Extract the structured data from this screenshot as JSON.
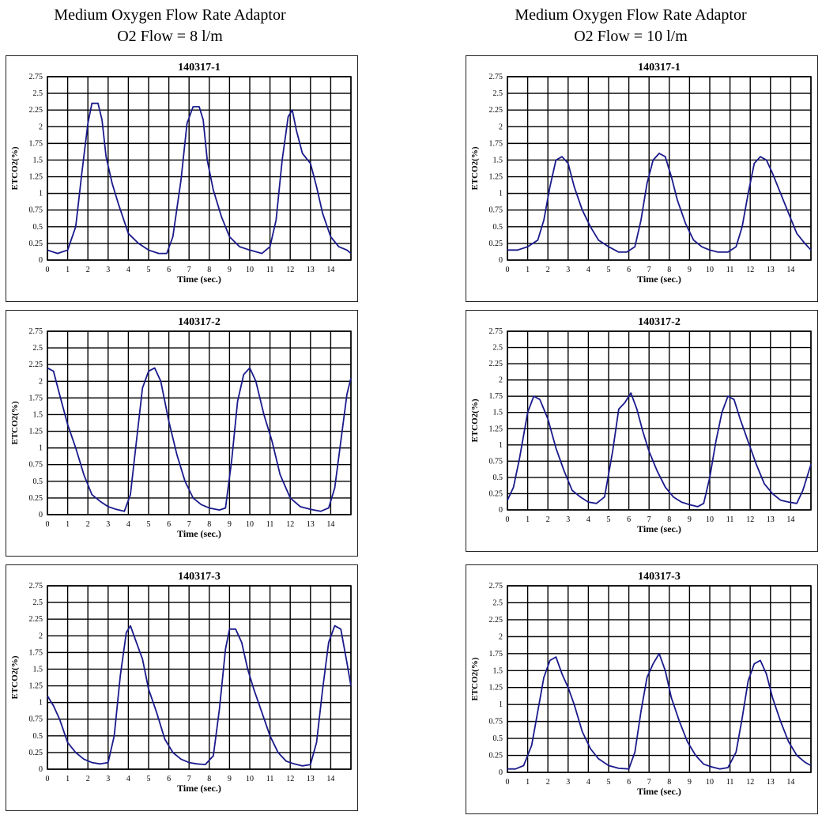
{
  "columns": [
    {
      "title_line1": "Medium Oxygen Flow Rate Adaptor",
      "title_line2": "O2 Flow = 8 l/m"
    },
    {
      "title_line1": "Medium Oxygen Flow Rate Adaptor",
      "title_line2": "O2 Flow = 10 l/m"
    }
  ],
  "colors": {
    "trace": "#1a1a8c",
    "grid": "#000000"
  },
  "chart_data": [
    {
      "type": "line",
      "title": "140317-1",
      "column": "left",
      "xlabel": "Time (sec.)",
      "ylabel": "ETCO2(%)",
      "xlim": [
        0,
        15
      ],
      "ylim": [
        0,
        2.75
      ],
      "xticks": [
        "0",
        "1",
        "2",
        "3",
        "4",
        "5",
        "6",
        "7",
        "8",
        "9",
        "10",
        "11",
        "12",
        "13",
        "14"
      ],
      "yticks": [
        "0",
        "0.25",
        "0.5",
        "0.75",
        "1",
        "1.25",
        "1.5",
        "1.75",
        "2",
        "2.25",
        "2.5",
        "2.75"
      ],
      "series": [
        {
          "x": [
            0,
            0.5,
            1,
            1.4,
            1.7,
            2,
            2.2,
            2.5,
            2.7,
            2.9,
            3.2,
            3.5,
            4,
            4.5,
            5,
            5.5,
            5.9,
            6.2,
            6.6,
            6.9,
            7.2,
            7.5,
            7.7,
            7.9,
            8.2,
            8.6,
            9,
            9.5,
            10,
            10.6,
            11,
            11.3,
            11.6,
            11.9,
            12.1,
            12.3,
            12.6,
            13,
            13.3,
            13.6,
            14,
            14.4,
            14.8,
            15
          ],
          "y": [
            0.15,
            0.1,
            0.15,
            0.5,
            1.3,
            2.05,
            2.35,
            2.35,
            2.1,
            1.55,
            1.15,
            0.85,
            0.4,
            0.25,
            0.15,
            0.1,
            0.1,
            0.35,
            1.2,
            2.05,
            2.3,
            2.3,
            2.1,
            1.5,
            1.05,
            0.65,
            0.35,
            0.2,
            0.15,
            0.1,
            0.2,
            0.6,
            1.5,
            2.15,
            2.25,
            1.95,
            1.6,
            1.45,
            1.1,
            0.7,
            0.35,
            0.2,
            0.15,
            0.1
          ]
        }
      ]
    },
    {
      "type": "line",
      "title": "140317-1",
      "column": "right",
      "xlabel": "Time (sec.)",
      "ylabel": "ETCO2(%)",
      "xlim": [
        0,
        15
      ],
      "ylim": [
        0,
        2.75
      ],
      "xticks": [
        "0",
        "1",
        "2",
        "3",
        "4",
        "5",
        "6",
        "7",
        "8",
        "9",
        "10",
        "11",
        "12",
        "13",
        "14"
      ],
      "yticks": [
        "0",
        "0.25",
        "0.5",
        "0.75",
        "1",
        "1.25",
        "1.5",
        "1.75",
        "2",
        "2.25",
        "2.5",
        "2.75"
      ],
      "series": [
        {
          "x": [
            0,
            0.5,
            1,
            1.5,
            1.8,
            2.1,
            2.4,
            2.7,
            3,
            3.3,
            3.7,
            4.1,
            4.5,
            5,
            5.5,
            5.9,
            6.3,
            6.6,
            6.9,
            7.2,
            7.5,
            7.8,
            8.1,
            8.4,
            8.8,
            9.2,
            9.6,
            10,
            10.4,
            10.9,
            11.3,
            11.6,
            11.9,
            12.2,
            12.5,
            12.8,
            13.1,
            13.5,
            13.9,
            14.3,
            14.7,
            15
          ],
          "y": [
            0.15,
            0.15,
            0.2,
            0.3,
            0.6,
            1.1,
            1.5,
            1.55,
            1.45,
            1.1,
            0.75,
            0.5,
            0.3,
            0.2,
            0.12,
            0.12,
            0.2,
            0.6,
            1.15,
            1.5,
            1.6,
            1.55,
            1.25,
            0.9,
            0.55,
            0.3,
            0.2,
            0.15,
            0.12,
            0.12,
            0.2,
            0.5,
            1.0,
            1.45,
            1.55,
            1.5,
            1.3,
            1.0,
            0.7,
            0.4,
            0.25,
            0.15
          ]
        }
      ]
    },
    {
      "type": "line",
      "title": "140317-2",
      "column": "left",
      "xlabel": "Time (sec.)",
      "ylabel": "ETCO2(%)",
      "xlim": [
        0,
        15
      ],
      "ylim": [
        0,
        2.75
      ],
      "xticks": [
        "0",
        "1",
        "2",
        "3",
        "4",
        "5",
        "6",
        "7",
        "8",
        "9",
        "10",
        "11",
        "12",
        "13",
        "14"
      ],
      "yticks": [
        "0",
        "0.25",
        "0.5",
        "0.75",
        "1",
        "1.25",
        "1.5",
        "1.75",
        "2",
        "2.25",
        "2.5",
        "2.75"
      ],
      "series": [
        {
          "x": [
            0,
            0.3,
            0.6,
            1,
            1.4,
            1.8,
            2.2,
            2.6,
            3,
            3.4,
            3.8,
            4.1,
            4.4,
            4.7,
            5,
            5.3,
            5.6,
            6,
            6.4,
            6.8,
            7.2,
            7.6,
            8,
            8.5,
            8.8,
            9.1,
            9.4,
            9.7,
            10,
            10.3,
            10.7,
            11.1,
            11.5,
            12,
            12.5,
            13,
            13.5,
            13.9,
            14.2,
            14.5,
            14.8,
            15
          ],
          "y": [
            2.2,
            2.15,
            1.8,
            1.35,
            1.0,
            0.6,
            0.3,
            0.2,
            0.12,
            0.08,
            0.05,
            0.3,
            1.1,
            1.9,
            2.15,
            2.2,
            2.0,
            1.4,
            0.9,
            0.5,
            0.25,
            0.15,
            0.1,
            0.07,
            0.1,
            0.8,
            1.7,
            2.1,
            2.2,
            2.0,
            1.5,
            1.1,
            0.6,
            0.25,
            0.12,
            0.08,
            0.05,
            0.1,
            0.4,
            1.1,
            1.8,
            2.05
          ]
        }
      ]
    },
    {
      "type": "line",
      "title": "140317-2",
      "column": "right",
      "xlabel": "Time (sec.)",
      "ylabel": "ETCO2(%)",
      "xlim": [
        0,
        15
      ],
      "ylim": [
        0,
        2.75
      ],
      "xticks": [
        "0",
        "1",
        "2",
        "3",
        "4",
        "5",
        "6",
        "7",
        "8",
        "9",
        "10",
        "11",
        "12",
        "13",
        "14"
      ],
      "yticks": [
        "0",
        "0.25",
        "0.5",
        "0.75",
        "1",
        "1.25",
        "1.5",
        "1.75",
        "2",
        "2.25",
        "2.5",
        "2.75"
      ],
      "series": [
        {
          "x": [
            0,
            0.3,
            0.6,
            1,
            1.3,
            1.6,
            2,
            2.4,
            2.8,
            3.2,
            3.6,
            4,
            4.4,
            4.8,
            5.2,
            5.5,
            5.8,
            6.1,
            6.4,
            6.7,
            7,
            7.4,
            7.8,
            8.2,
            8.6,
            9,
            9.4,
            9.7,
            10,
            10.3,
            10.6,
            10.9,
            11.2,
            11.5,
            11.9,
            12.3,
            12.7,
            13.1,
            13.5,
            13.9,
            14.3,
            14.6,
            15
          ],
          "y": [
            0.15,
            0.35,
            0.8,
            1.5,
            1.75,
            1.7,
            1.4,
            0.95,
            0.6,
            0.3,
            0.2,
            0.12,
            0.1,
            0.2,
            0.9,
            1.55,
            1.65,
            1.8,
            1.55,
            1.2,
            0.9,
            0.6,
            0.35,
            0.2,
            0.12,
            0.08,
            0.05,
            0.1,
            0.5,
            1.05,
            1.5,
            1.75,
            1.7,
            1.4,
            1.05,
            0.7,
            0.4,
            0.25,
            0.15,
            0.12,
            0.1,
            0.3,
            0.7
          ]
        }
      ]
    },
    {
      "type": "line",
      "title": "140317-3",
      "column": "left",
      "xlabel": "Time (sec.)",
      "ylabel": "ETCO2(%)",
      "xlim": [
        0,
        15
      ],
      "ylim": [
        0,
        2.75
      ],
      "xticks": [
        "0",
        "1",
        "2",
        "3",
        "4",
        "5",
        "6",
        "7",
        "8",
        "9",
        "10",
        "11",
        "12",
        "13",
        "14"
      ],
      "yticks": [
        "0",
        "0.25",
        "0.5",
        "0.75",
        "1",
        "1.25",
        "1.5",
        "1.75",
        "2",
        "2.25",
        "2.5",
        "2.75"
      ],
      "series": [
        {
          "x": [
            0,
            0.3,
            0.6,
            1,
            1.4,
            1.8,
            2.2,
            2.6,
            3,
            3.3,
            3.6,
            3.9,
            4.1,
            4.4,
            4.7,
            5,
            5.4,
            5.8,
            6.2,
            6.6,
            7,
            7.4,
            7.8,
            8.2,
            8.5,
            8.8,
            9,
            9.3,
            9.6,
            9.9,
            10.2,
            10.6,
            11,
            11.4,
            11.8,
            12.2,
            12.6,
            13,
            13.3,
            13.6,
            13.9,
            14.2,
            14.5,
            14.8,
            15
          ],
          "y": [
            1.1,
            0.95,
            0.75,
            0.4,
            0.25,
            0.15,
            0.1,
            0.08,
            0.1,
            0.5,
            1.4,
            2.05,
            2.15,
            1.9,
            1.65,
            1.2,
            0.85,
            0.45,
            0.25,
            0.15,
            0.1,
            0.08,
            0.07,
            0.2,
            0.9,
            1.8,
            2.1,
            2.1,
            1.9,
            1.5,
            1.2,
            0.85,
            0.5,
            0.25,
            0.12,
            0.08,
            0.05,
            0.07,
            0.4,
            1.2,
            1.9,
            2.15,
            2.1,
            1.6,
            1.25
          ]
        }
      ]
    },
    {
      "type": "line",
      "title": "140317-3",
      "column": "right",
      "xlabel": "Time (sec.)",
      "ylabel": "ETCO2(%)",
      "xlim": [
        0,
        15
      ],
      "ylim": [
        0,
        2.75
      ],
      "xticks": [
        "0",
        "1",
        "2",
        "3",
        "4",
        "5",
        "6",
        "7",
        "8",
        "9",
        "10",
        "11",
        "12",
        "13",
        "14"
      ],
      "yticks": [
        "0",
        "0.25",
        "0.5",
        "0.75",
        "1",
        "1.25",
        "1.5",
        "1.75",
        "2",
        "2.25",
        "2.5",
        "2.75"
      ],
      "series": [
        {
          "x": [
            0,
            0.4,
            0.8,
            1.2,
            1.5,
            1.8,
            2.1,
            2.4,
            2.7,
            3,
            3.3,
            3.7,
            4.1,
            4.5,
            5,
            5.5,
            6,
            6.3,
            6.6,
            6.9,
            7.2,
            7.5,
            7.8,
            8.1,
            8.5,
            8.9,
            9.3,
            9.7,
            10.1,
            10.5,
            10.9,
            11.3,
            11.6,
            11.9,
            12.2,
            12.5,
            12.8,
            13.1,
            13.5,
            13.9,
            14.3,
            14.7,
            15
          ],
          "y": [
            0.05,
            0.05,
            0.1,
            0.4,
            0.9,
            1.4,
            1.65,
            1.7,
            1.45,
            1.25,
            1.0,
            0.6,
            0.35,
            0.2,
            0.1,
            0.06,
            0.05,
            0.3,
            0.9,
            1.4,
            1.6,
            1.75,
            1.5,
            1.1,
            0.75,
            0.45,
            0.25,
            0.12,
            0.08,
            0.05,
            0.07,
            0.3,
            0.8,
            1.35,
            1.6,
            1.65,
            1.45,
            1.1,
            0.75,
            0.45,
            0.25,
            0.15,
            0.1
          ]
        }
      ]
    }
  ]
}
